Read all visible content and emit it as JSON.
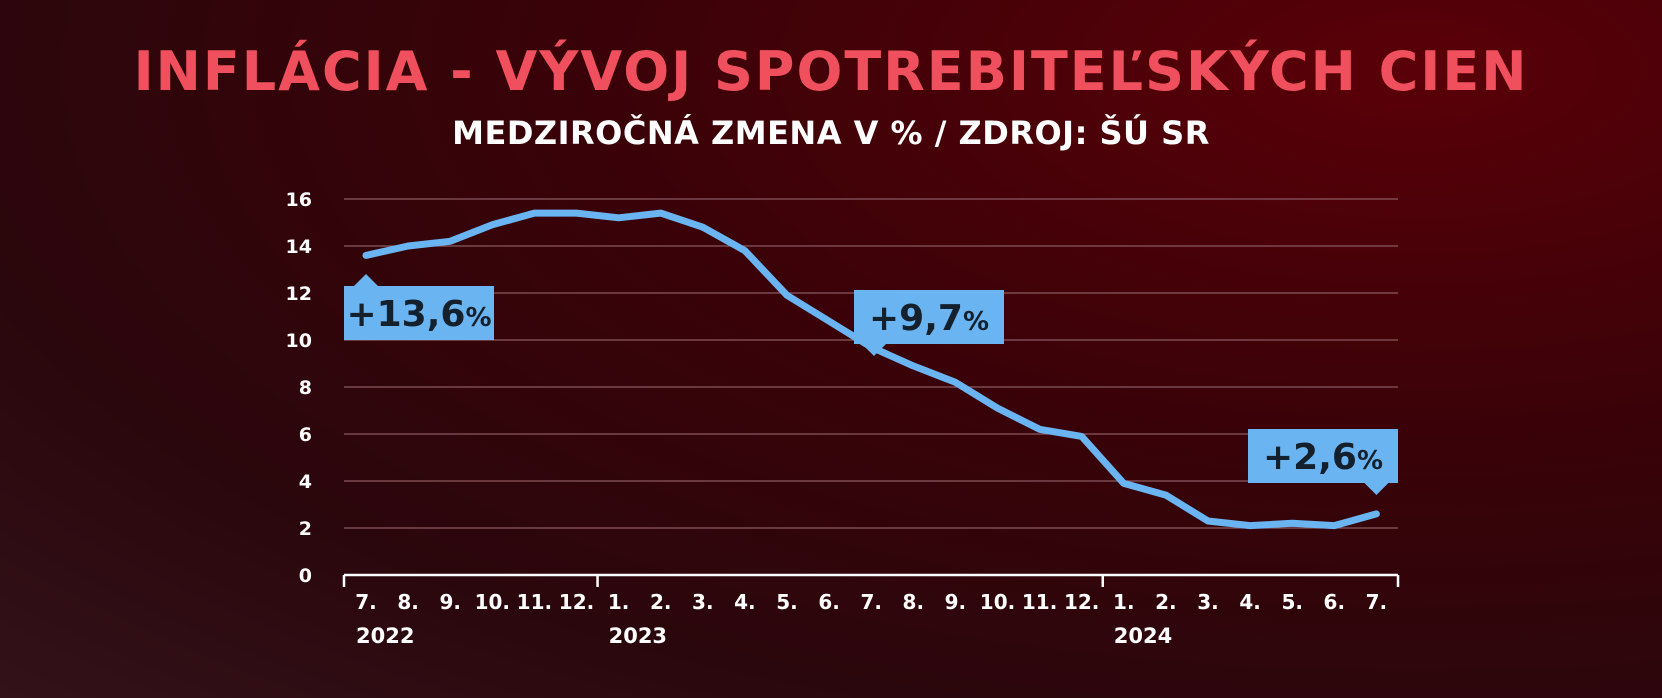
{
  "title": "INFLÁCIA - VÝVOJ SPOTREBITEĽSKÝCH CIEN",
  "subtitle": "MEDZIROČNÁ ZMENA V % / ZDROJ: ŠÚ SR",
  "colors": {
    "title": "#f0505e",
    "line": "#6ab4f2",
    "callout_bg": "#6ab4f2",
    "callout_text": "#14202b",
    "grid": "#8a5a60"
  },
  "chart_data": {
    "type": "line",
    "title": "INFLÁCIA - VÝVOJ SPOTREBITEĽSKÝCH CIEN",
    "subtitle": "MEDZIROČNÁ ZMENA V % / ZDROJ: ŠÚ SR",
    "xlabel": "",
    "ylabel": "",
    "ylim": [
      0,
      16
    ],
    "yticks": [
      "0",
      "2",
      "4",
      "6",
      "8",
      "10",
      "12",
      "14",
      "16"
    ],
    "grid": true,
    "categories": [
      "7.",
      "8.",
      "9.",
      "10.",
      "11.",
      "12.",
      "1.",
      "2.",
      "3.",
      "4.",
      "5.",
      "6.",
      "7.",
      "8.",
      "9.",
      "10.",
      "11.",
      "12.",
      "1.",
      "2.",
      "3.",
      "4.",
      "5.",
      "6.",
      "7."
    ],
    "years": [
      {
        "label": "2022",
        "start_index": 0
      },
      {
        "label": "2023",
        "start_index": 6
      },
      {
        "label": "2024",
        "start_index": 18
      }
    ],
    "series": [
      {
        "values": [
          13.6,
          14.0,
          14.2,
          14.9,
          15.4,
          15.4,
          15.2,
          15.4,
          14.8,
          13.8,
          11.9,
          10.8,
          9.7,
          8.9,
          8.2,
          7.1,
          6.2,
          5.9,
          3.9,
          3.4,
          2.3,
          2.1,
          2.2,
          2.1,
          2.6
        ]
      }
    ],
    "annotations": [
      {
        "label": "+13,6",
        "unit": "%",
        "index": 0
      },
      {
        "label": "+9,7",
        "unit": "%",
        "index": 12
      },
      {
        "label": "+2,6",
        "unit": "%",
        "index": 24
      }
    ]
  }
}
